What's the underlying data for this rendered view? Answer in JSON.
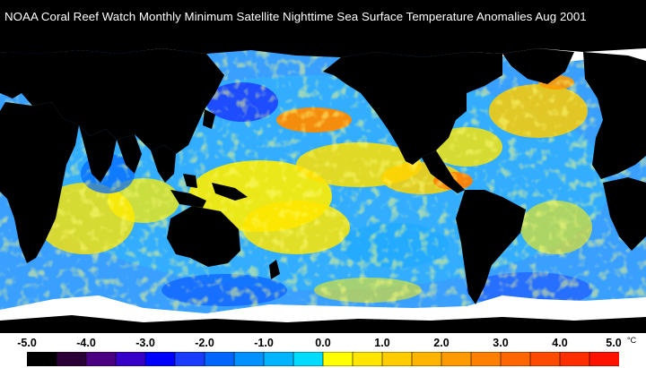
{
  "title": "NOAA Coral Reef Watch Monthly Minimum Satellite Nighttime Sea Surface Temperature Anomalies    Aug 2001",
  "legend": {
    "ticks": [
      "-5.0",
      "-4.0",
      "-3.0",
      "-2.0",
      "-1.0",
      "0.0",
      "1.0",
      "2.0",
      "3.0",
      "4.0",
      "5.0"
    ],
    "unit": "°C",
    "range": [
      -5.0,
      5.0
    ],
    "colors": [
      "#000000",
      "#2a0036",
      "#4b0082",
      "#3700c8",
      "#0000ff",
      "#1a3cff",
      "#0066ff",
      "#0090ff",
      "#00b4ff",
      "#00dcff",
      "#ffff00",
      "#ffe600",
      "#ffcc00",
      "#ffb400",
      "#ff9a00",
      "#ff8000",
      "#ff6600",
      "#ff4a00",
      "#ff2e00",
      "#ff1200"
    ]
  },
  "map_colors": {
    "land": "#000000",
    "ice": "#ffffff",
    "ocean_base": "#3aa0ff"
  }
}
